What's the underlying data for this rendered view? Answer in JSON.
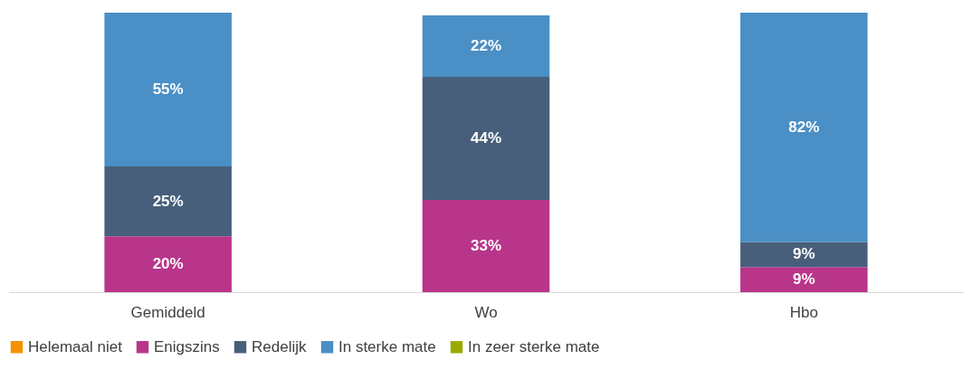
{
  "chart_data": {
    "type": "bar",
    "stacked": true,
    "categories": [
      "Gemiddeld",
      "Wo",
      "Hbo"
    ],
    "ylim": [
      0,
      100
    ],
    "tick_labels": "x",
    "grid": false,
    "legend": "bottom",
    "series": [
      {
        "name": "Helemaal niet",
        "color": "#f39200",
        "values": [
          0,
          0,
          0
        ],
        "value_labels": [
          null,
          null,
          null
        ]
      },
      {
        "name": "Enigszins",
        "color": "#b8358a",
        "values": [
          20,
          33,
          9
        ],
        "value_labels": [
          "20%",
          "33%",
          "9%"
        ]
      },
      {
        "name": "Redelijk",
        "color": "#475f7b",
        "values": [
          25,
          44,
          9
        ],
        "value_labels": [
          "25%",
          "44%",
          "9%"
        ]
      },
      {
        "name": "In sterke mate",
        "color": "#4a8fc5",
        "values": [
          55,
          22,
          82
        ],
        "value_labels": [
          "55%",
          "22%",
          "82%"
        ]
      },
      {
        "name": "In zeer sterke mate",
        "color": "#9aaa00",
        "values": [
          0,
          0,
          0
        ],
        "value_labels": [
          null,
          null,
          null
        ]
      }
    ]
  }
}
